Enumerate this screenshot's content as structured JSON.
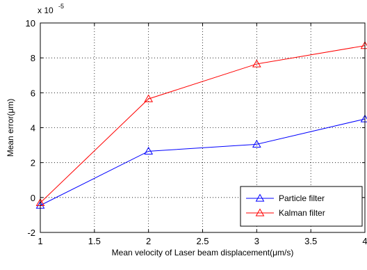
{
  "chart_data": {
    "type": "line",
    "title": "",
    "xlabel": "Mean velocity of Laser beam displacement(μm/s)",
    "ylabel": "Mean error(μm)",
    "y_scale_label": "x 10",
    "y_scale_exponent": "-5",
    "xlim": [
      1,
      4
    ],
    "ylim": [
      -2,
      10
    ],
    "xticks": [
      "1",
      "1.5",
      "2",
      "2.5",
      "3",
      "3.5",
      "4"
    ],
    "yticks": [
      "-2",
      "0",
      "2",
      "4",
      "6",
      "8",
      "10"
    ],
    "grid": true,
    "legend_position": "bottom-right",
    "x": [
      1,
      2,
      3,
      4
    ],
    "series": [
      {
        "name": "Particle filter",
        "color": "#0000ff",
        "marker": "triangle",
        "values": [
          -0.45,
          2.65,
          3.05,
          4.5
        ]
      },
      {
        "name": "Kalman filter",
        "color": "#ff0000",
        "marker": "triangle",
        "values": [
          -0.3,
          5.65,
          7.65,
          8.7
        ]
      }
    ]
  }
}
